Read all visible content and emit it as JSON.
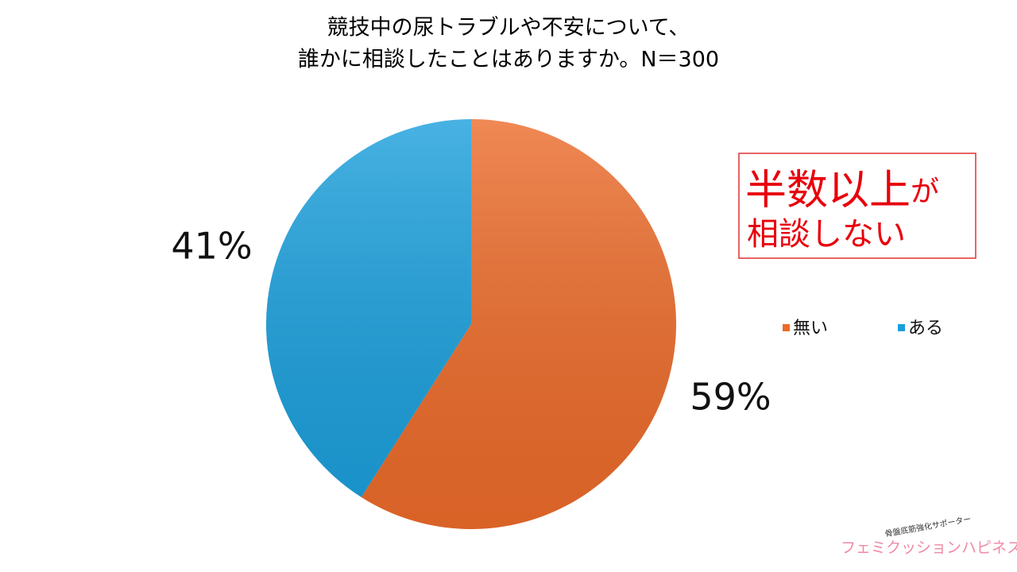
{
  "chart_data": {
    "type": "pie",
    "title": [
      "競技中の尿トラブルや不安について、",
      "誰かに相談したことはありますか。N＝300"
    ],
    "categories": [
      "無い",
      "ある"
    ],
    "values": [
      59,
      41
    ],
    "value_labels": [
      "59%",
      "41%"
    ],
    "colors": [
      "#ec6b2a",
      "#1a9fdc"
    ],
    "annotation": [
      "半数以上",
      "が",
      "相談しない"
    ],
    "logo": [
      "骨盤底筋強化サポーター",
      "フェミクッションハピネス"
    ]
  }
}
